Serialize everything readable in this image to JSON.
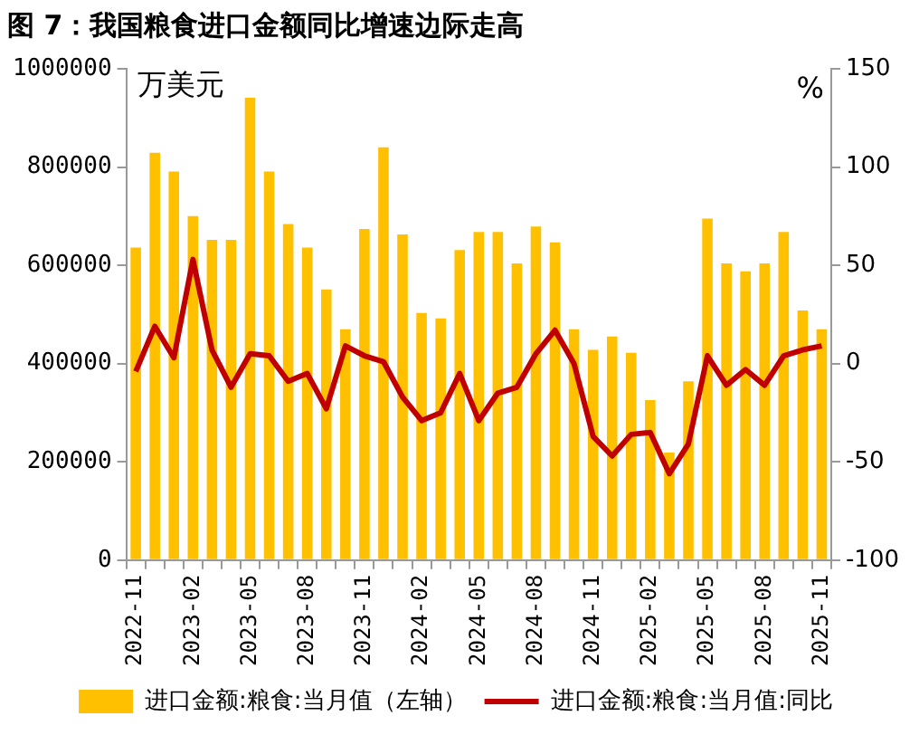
{
  "chart_data": {
    "type": "bar",
    "title": "图 7：我国粮食进口金额同比增速边际走高",
    "ylabel": "万美元",
    "y2label": "%",
    "categories": [
      "2022-11",
      null,
      null,
      "2023-02",
      null,
      null,
      "2023-05",
      null,
      null,
      "2023-08",
      null,
      null,
      "2023-11",
      null,
      null,
      "2024-02",
      null,
      null,
      "2024-05",
      null,
      null,
      "2024-08",
      null,
      null,
      "2024-11",
      null,
      null,
      "2025-02",
      null,
      null,
      "2025-05",
      null,
      null,
      "2025-08",
      null,
      null,
      "2025-11"
    ],
    "series": [
      {
        "name": "进口金额:粮食:当月值（左轴）",
        "color": "#ffc000",
        "values": [
          636000,
          829000,
          791000,
          700000,
          652000,
          652000,
          941000,
          791000,
          684000,
          636000,
          551000,
          470000,
          674000,
          840000,
          663000,
          503000,
          492000,
          631000,
          668000,
          668000,
          604000,
          679000,
          647000,
          470000,
          428000,
          455000,
          422000,
          326000,
          219000,
          364000,
          695000,
          604000,
          588000,
          604000,
          668000,
          508000,
          470000
        ]
      },
      {
        "name": "进口金额:粮食:当月值:同比",
        "type": "line",
        "axis": "y2",
        "color": "#c00000",
        "values": [
          -4,
          19,
          3,
          53,
          7,
          -12,
          5,
          4,
          -9,
          -5,
          -23,
          9,
          4,
          1,
          -17,
          -29,
          -25,
          -5,
          -29,
          -15,
          -12,
          5,
          17,
          0,
          -37,
          -47,
          -36,
          -35,
          -56,
          -41,
          4,
          -11,
          -3,
          -11,
          4,
          7,
          9
        ]
      }
    ],
    "ylim": [
      0,
      1000000
    ],
    "yticks": [
      0,
      200000,
      400000,
      600000,
      800000,
      1000000
    ],
    "y2lim": [
      -100,
      150
    ],
    "y2ticks": [
      -100,
      -50,
      0,
      50,
      100,
      150
    ],
    "grid": false,
    "legend": "bottom",
    "marker": "none",
    "line_style": "solid"
  }
}
